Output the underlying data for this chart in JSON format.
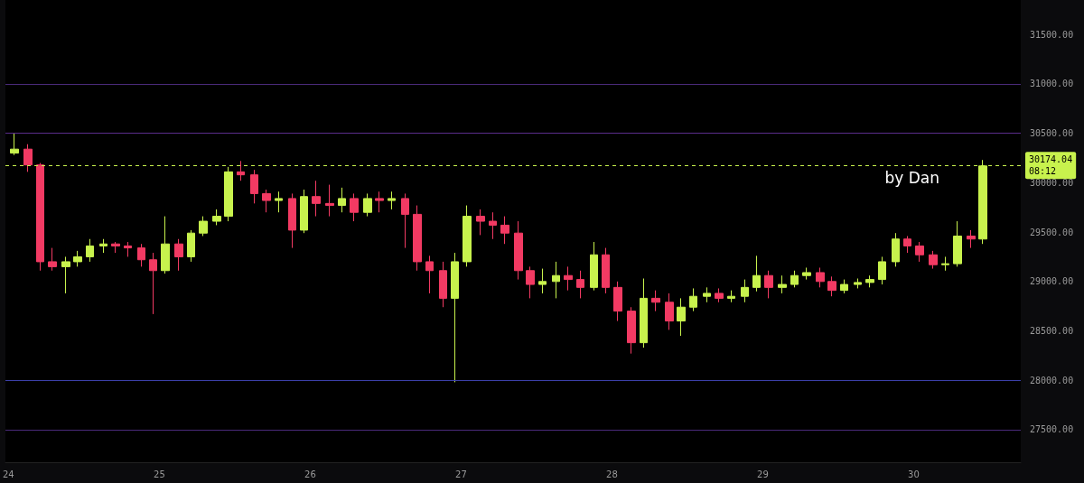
{
  "chart_data": {
    "type": "candlestick",
    "x": [
      24.04,
      24.13,
      24.21,
      24.29,
      24.38,
      24.46,
      24.54,
      24.63,
      24.71,
      24.79,
      24.88,
      24.96,
      25.04,
      25.13,
      25.21,
      25.29,
      25.38,
      25.46,
      25.54,
      25.63,
      25.71,
      25.79,
      25.88,
      25.96,
      26.04,
      26.13,
      26.21,
      26.29,
      26.38,
      26.46,
      26.54,
      26.63,
      26.71,
      26.79,
      26.88,
      26.96,
      27.04,
      27.13,
      27.21,
      27.29,
      27.38,
      27.46,
      27.54,
      27.63,
      27.71,
      27.79,
      27.88,
      27.96,
      28.04,
      28.13,
      28.21,
      28.29,
      28.38,
      28.46,
      28.54,
      28.63,
      28.71,
      28.79,
      28.88,
      28.96,
      29.04,
      29.13,
      29.21,
      29.29,
      29.38,
      29.46,
      29.54,
      29.63,
      29.71,
      29.79,
      29.88,
      29.96,
      30.04,
      30.13,
      30.21,
      30.29,
      30.38,
      30.46
    ],
    "ohlc": [
      [
        30300,
        30500,
        30280,
        30340
      ],
      [
        30340,
        30390,
        30110,
        30180
      ],
      [
        30180,
        30200,
        29110,
        29200
      ],
      [
        29200,
        29340,
        29110,
        29150
      ],
      [
        29150,
        29250,
        28880,
        29200
      ],
      [
        29200,
        29310,
        29150,
        29250
      ],
      [
        29250,
        29430,
        29200,
        29360
      ],
      [
        29360,
        29430,
        29290,
        29380
      ],
      [
        29380,
        29400,
        29290,
        29360
      ],
      [
        29360,
        29400,
        29250,
        29340
      ],
      [
        29340,
        29380,
        29150,
        29220
      ],
      [
        29220,
        29290,
        28670,
        29110
      ],
      [
        29110,
        29660,
        29080,
        29380
      ],
      [
        29380,
        29430,
        29110,
        29250
      ],
      [
        29250,
        29520,
        29200,
        29490
      ],
      [
        29490,
        29660,
        29460,
        29610
      ],
      [
        29610,
        29730,
        29570,
        29660
      ],
      [
        29660,
        30160,
        29610,
        30110
      ],
      [
        30110,
        30220,
        30020,
        30080
      ],
      [
        30080,
        30130,
        29790,
        29890
      ],
      [
        29890,
        29930,
        29700,
        29820
      ],
      [
        29820,
        29910,
        29700,
        29840
      ],
      [
        29840,
        29890,
        29340,
        29520
      ],
      [
        29520,
        29930,
        29490,
        29860
      ],
      [
        29860,
        30020,
        29660,
        29790
      ],
      [
        29790,
        29980,
        29660,
        29770
      ],
      [
        29770,
        29950,
        29700,
        29840
      ],
      [
        29840,
        29890,
        29610,
        29700
      ],
      [
        29700,
        29890,
        29660,
        29840
      ],
      [
        29840,
        29910,
        29700,
        29820
      ],
      [
        29820,
        29910,
        29730,
        29840
      ],
      [
        29840,
        29890,
        29340,
        29680
      ],
      [
        29680,
        29770,
        29110,
        29200
      ],
      [
        29200,
        29260,
        28880,
        29110
      ],
      [
        29110,
        29200,
        28740,
        28830
      ],
      [
        28830,
        29290,
        27980,
        29200
      ],
      [
        29200,
        29770,
        29150,
        29660
      ],
      [
        29660,
        29730,
        29470,
        29610
      ],
      [
        29610,
        29700,
        29430,
        29570
      ],
      [
        29570,
        29660,
        29380,
        29490
      ],
      [
        29490,
        29610,
        29020,
        29110
      ],
      [
        29110,
        29150,
        28830,
        28970
      ],
      [
        28970,
        29130,
        28880,
        29000
      ],
      [
        29000,
        29200,
        28830,
        29060
      ],
      [
        29060,
        29150,
        28910,
        29020
      ],
      [
        29020,
        29110,
        28830,
        28940
      ],
      [
        28940,
        29400,
        28910,
        29270
      ],
      [
        29270,
        29340,
        28880,
        28940
      ],
      [
        28940,
        29000,
        28600,
        28700
      ],
      [
        28700,
        28740,
        28270,
        28380
      ],
      [
        28380,
        29030,
        28330,
        28830
      ],
      [
        28830,
        28910,
        28700,
        28790
      ],
      [
        28790,
        28880,
        28510,
        28600
      ],
      [
        28600,
        28830,
        28450,
        28740
      ],
      [
        28740,
        28930,
        28700,
        28850
      ],
      [
        28850,
        28940,
        28790,
        28880
      ],
      [
        28880,
        28930,
        28790,
        28830
      ],
      [
        28830,
        28910,
        28790,
        28850
      ],
      [
        28850,
        29020,
        28790,
        28940
      ],
      [
        28940,
        29260,
        28900,
        29060
      ],
      [
        29060,
        29110,
        28830,
        28940
      ],
      [
        28940,
        29060,
        28880,
        28970
      ],
      [
        28970,
        29110,
        28940,
        29060
      ],
      [
        29060,
        29140,
        29020,
        29090
      ],
      [
        29090,
        29140,
        28940,
        29000
      ],
      [
        29000,
        29050,
        28850,
        28910
      ],
      [
        28910,
        29020,
        28880,
        28970
      ],
      [
        28970,
        29030,
        28930,
        28990
      ],
      [
        28990,
        29060,
        28940,
        29020
      ],
      [
        29020,
        29250,
        28970,
        29200
      ],
      [
        29200,
        29490,
        29150,
        29430
      ],
      [
        29430,
        29460,
        29290,
        29360
      ],
      [
        29360,
        29400,
        29200,
        29270
      ],
      [
        29270,
        29310,
        29130,
        29170
      ],
      [
        29170,
        29250,
        29110,
        29180
      ],
      [
        29180,
        29610,
        29150,
        29460
      ],
      [
        29460,
        29520,
        29340,
        29430
      ],
      [
        29430,
        30230,
        29380,
        30170
      ]
    ],
    "colors": [
      "#c8f24d",
      "#f23a63",
      "#f23a63",
      "#f23a63",
      "#c8f24d",
      "#c8f24d",
      "#c8f24d",
      "#c8f24d",
      "#f23a63",
      "#f23a63",
      "#f23a63",
      "#f23a63",
      "#c8f24d",
      "#f23a63",
      "#c8f24d",
      "#c8f24d",
      "#c8f24d",
      "#c8f24d",
      "#f23a63",
      "#f23a63",
      "#f23a63",
      "#c8f24d",
      "#f23a63",
      "#c8f24d",
      "#f23a63",
      "#f23a63",
      "#c8f24d",
      "#f23a63",
      "#c8f24d",
      "#f23a63",
      "#c8f24d",
      "#f23a63",
      "#f23a63",
      "#f23a63",
      "#f23a63",
      "#c8f24d",
      "#c8f24d",
      "#f23a63",
      "#f23a63",
      "#f23a63",
      "#f23a63",
      "#f23a63",
      "#c8f24d",
      "#c8f24d",
      "#f23a63",
      "#f23a63",
      "#c8f24d",
      "#f23a63",
      "#f23a63",
      "#f23a63",
      "#c8f24d",
      "#f23a63",
      "#f23a63",
      "#c8f24d",
      "#c8f24d",
      "#c8f24d",
      "#f23a63",
      "#c8f24d",
      "#c8f24d",
      "#c8f24d",
      "#f23a63",
      "#c8f24d",
      "#c8f24d",
      "#c8f24d",
      "#f23a63",
      "#f23a63",
      "#c8f24d",
      "#c8f24d",
      "#c8f24d",
      "#c8f24d",
      "#c8f24d",
      "#f23a63",
      "#f23a63",
      "#f23a63",
      "#c8f24d",
      "#c8f24d",
      "#f23a63",
      "#c8f24d"
    ],
    "xlim": [
      23.98,
      30.71
    ],
    "xticks": [
      24,
      25,
      26,
      27,
      28,
      29,
      30
    ],
    "ylim": [
      27170,
      31850
    ],
    "yticks": [
      {
        "value": 27500,
        "label": "27500.00"
      },
      {
        "value": 28000,
        "label": "28000.00"
      },
      {
        "value": 28500,
        "label": "28500.00"
      },
      {
        "value": 29000,
        "label": "29000.00"
      },
      {
        "value": 29500,
        "label": "29500.00"
      },
      {
        "value": 30000,
        "label": "30000.00"
      },
      {
        "value": 30500,
        "label": "30500.00"
      },
      {
        "value": 31000,
        "label": "31000.00"
      },
      {
        "value": 31500,
        "label": "31500.00"
      }
    ],
    "ref_lines": [
      {
        "axis": "y",
        "value": 31000,
        "label": null,
        "color": "#4a2a7a",
        "line_style": "solid"
      },
      {
        "axis": "y",
        "value": 30500,
        "label": null,
        "color": "#5a2d8c",
        "line_style": "solid"
      },
      {
        "axis": "y",
        "value": 28000,
        "label": null,
        "color": "#3b3fa8",
        "line_style": "solid"
      },
      {
        "axis": "y",
        "value": 27500,
        "label": null,
        "color": "#4a2a7a",
        "line_style": "solid"
      },
      {
        "axis": "y",
        "value": 30174.04,
        "label": "30174.04\n08:12",
        "color": "#c8f24d",
        "line_style": "dashed"
      }
    ],
    "annotations": [
      "by Dan"
    ],
    "grid": false
  }
}
